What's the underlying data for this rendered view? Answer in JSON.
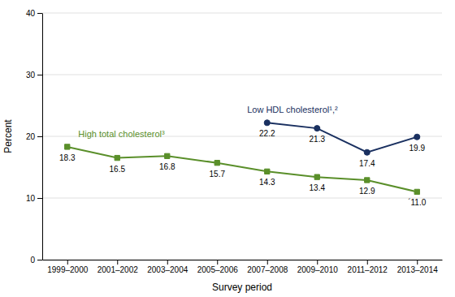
{
  "chart_data": {
    "type": "line",
    "xlabel": "Survey period",
    "ylabel": "Percent",
    "categories": [
      "1999–2000",
      "2001–2002",
      "2003–2004",
      "2005–2006",
      "2007–2008",
      "2009–2010",
      "2011–2012",
      "2013–2014"
    ],
    "series": [
      {
        "name": "High total cholesterol³",
        "color": "#5a8f2a",
        "marker": "square",
        "values": [
          18.3,
          16.5,
          16.8,
          15.7,
          14.3,
          13.4,
          12.9,
          11.0
        ],
        "value_labels": [
          "18.3",
          "16.5",
          "16.8",
          "15.7",
          "14.3",
          "13.4",
          "12.9",
          "´11.0"
        ]
      },
      {
        "name": "Low HDL cholesterol¹,²",
        "color": "#1a3060",
        "marker": "circle",
        "values": [
          null,
          null,
          null,
          null,
          22.2,
          21.3,
          17.4,
          19.9
        ]
      }
    ],
    "ylim": [
      0,
      40
    ],
    "yticks": [
      0,
      10,
      20,
      30,
      40
    ],
    "grid": true,
    "data_labels": true
  }
}
